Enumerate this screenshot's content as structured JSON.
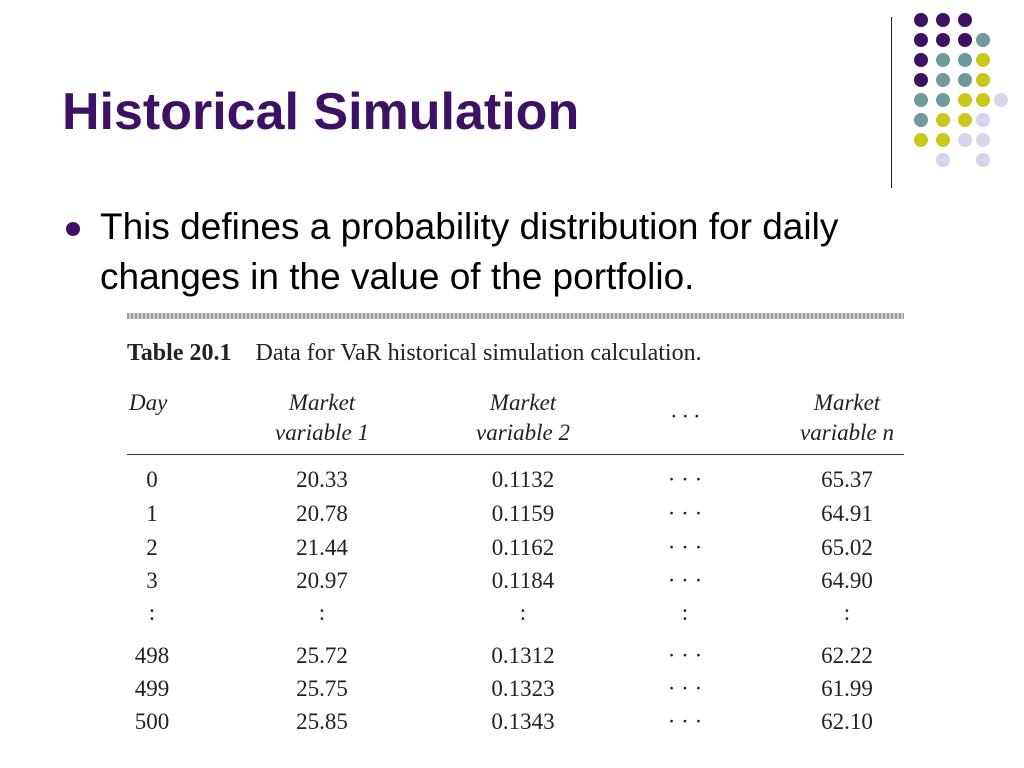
{
  "slide": {
    "title": "Historical Simulation",
    "bullet": "This defines a probability distribution for daily changes in the value of the portfolio."
  },
  "colors": {
    "title": "#3d1163",
    "dot_purple": "#3d1163",
    "dot_teal": "#6f9a9c",
    "dot_yellow": "#c8c81e",
    "dot_lavender": "#d6d6ea"
  },
  "table": {
    "caption_number": "Table 20.1",
    "caption_text": "Data for VaR historical simulation calculation.",
    "headers": [
      [
        "Day",
        ""
      ],
      [
        "Market",
        "variable 1"
      ],
      [
        "Market",
        "variable 2"
      ],
      [
        "· · ·",
        ""
      ],
      [
        "Market",
        "variable n"
      ]
    ],
    "rows": [
      [
        "0",
        "20.33",
        "0.1132",
        "· · ·",
        "65.37"
      ],
      [
        "1",
        "20.78",
        "0.1159",
        "· · ·",
        "64.91"
      ],
      [
        "2",
        "21.44",
        "0.1162",
        "· · ·",
        "65.02"
      ],
      [
        "3",
        "20.97",
        "0.1184",
        "· · ·",
        "64.90"
      ],
      [
        ":",
        ":",
        ":",
        ":",
        ":"
      ],
      [
        "498",
        "25.72",
        "0.1312",
        "· · ·",
        "62.22"
      ],
      [
        "499",
        "25.75",
        "0.1323",
        "· · ·",
        "61.99"
      ],
      [
        "500",
        "25.85",
        "0.1343",
        "· · ·",
        "62.10"
      ]
    ]
  }
}
